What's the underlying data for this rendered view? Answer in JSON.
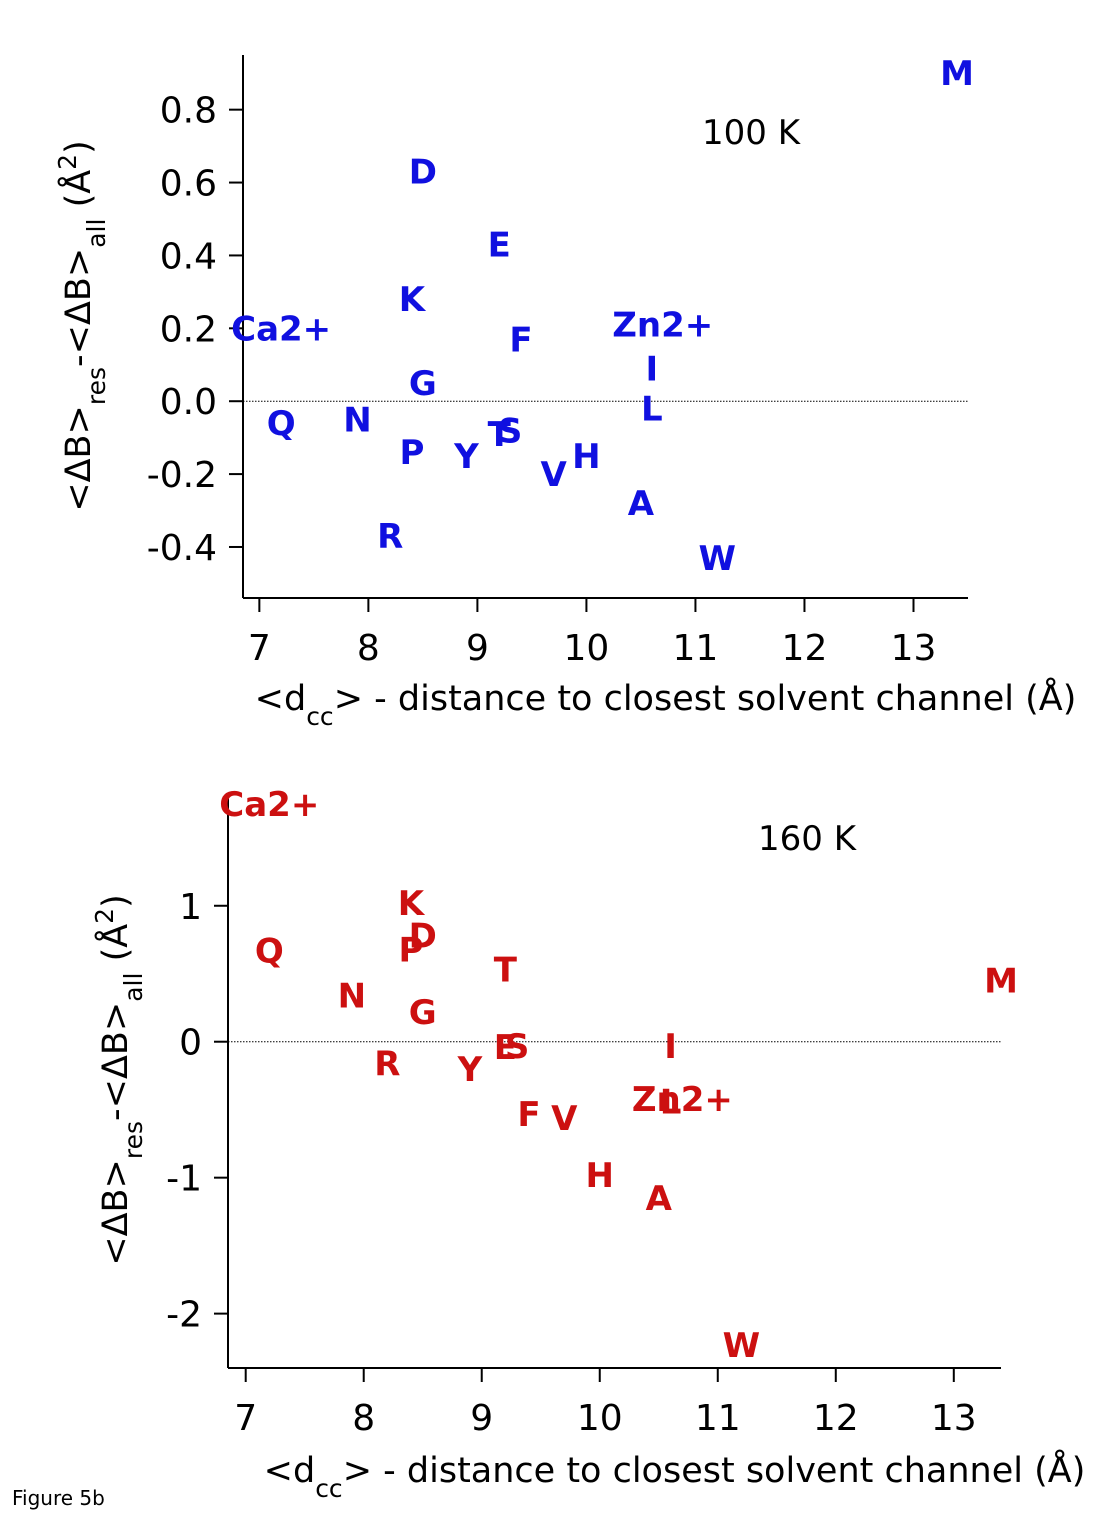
{
  "figure_label": "Figure 5b",
  "chart_data": [
    {
      "type": "scatter",
      "annotation": "100 K",
      "color": "#1010e0",
      "xlim": [
        6.85,
        13.5
      ],
      "ylim": [
        -0.54,
        0.95
      ],
      "xticks": [
        "7",
        "8",
        "9",
        "10",
        "11",
        "12",
        "13"
      ],
      "yticks": [
        "0.8",
        "0.6",
        "0.4",
        "0.2",
        "0.0",
        "-0.2",
        "-0.4"
      ],
      "ytick_values": [
        0.8,
        0.6,
        0.4,
        0.2,
        0.0,
        -0.2,
        -0.4
      ],
      "zero_line": true,
      "points": [
        {
          "label": "M",
          "x": 13.4,
          "y": 0.9
        },
        {
          "label": "D",
          "x": 8.5,
          "y": 0.63
        },
        {
          "label": "E",
          "x": 9.2,
          "y": 0.43
        },
        {
          "label": "K",
          "x": 8.4,
          "y": 0.28
        },
        {
          "label": "Ca2+",
          "x": 7.2,
          "y": 0.2
        },
        {
          "label": "Zn2+",
          "x": 10.7,
          "y": 0.21
        },
        {
          "label": "F",
          "x": 9.4,
          "y": 0.17
        },
        {
          "label": "I",
          "x": 10.6,
          "y": 0.09
        },
        {
          "label": "G",
          "x": 8.5,
          "y": 0.05
        },
        {
          "label": "L",
          "x": 10.6,
          "y": -0.02
        },
        {
          "label": "Q",
          "x": 7.2,
          "y": -0.06
        },
        {
          "label": "N",
          "x": 7.9,
          "y": -0.05
        },
        {
          "label": "T",
          "x": 9.2,
          "y": -0.09
        },
        {
          "label": "S",
          "x": 9.3,
          "y": -0.08
        },
        {
          "label": "P",
          "x": 8.4,
          "y": -0.14
        },
        {
          "label": "Y",
          "x": 8.9,
          "y": -0.15
        },
        {
          "label": "H",
          "x": 10.0,
          "y": -0.15
        },
        {
          "label": "V",
          "x": 9.7,
          "y": -0.2
        },
        {
          "label": "A",
          "x": 10.5,
          "y": -0.28
        },
        {
          "label": "R",
          "x": 8.2,
          "y": -0.37
        },
        {
          "label": "W",
          "x": 11.2,
          "y": -0.43
        }
      ]
    },
    {
      "type": "scatter",
      "annotation": "160 K",
      "color": "#cc1010",
      "xlim": [
        6.85,
        13.4
      ],
      "ylim": [
        -2.4,
        1.8
      ],
      "xticks": [
        "7",
        "8",
        "9",
        "10",
        "11",
        "12",
        "13"
      ],
      "yticks": [
        "1",
        "0",
        "-1",
        "-2"
      ],
      "ytick_values": [
        1,
        0,
        -1,
        -2
      ],
      "zero_line": true,
      "points": [
        {
          "label": "Ca2+",
          "x": 7.2,
          "y": 1.75
        },
        {
          "label": "K",
          "x": 8.4,
          "y": 1.02
        },
        {
          "label": "D",
          "x": 8.5,
          "y": 0.78
        },
        {
          "label": "P",
          "x": 8.4,
          "y": 0.68
        },
        {
          "label": "Q",
          "x": 7.2,
          "y": 0.67
        },
        {
          "label": "T",
          "x": 9.2,
          "y": 0.53
        },
        {
          "label": "M",
          "x": 13.4,
          "y": 0.45
        },
        {
          "label": "N",
          "x": 7.9,
          "y": 0.34
        },
        {
          "label": "G",
          "x": 8.5,
          "y": 0.22
        },
        {
          "label": "E",
          "x": 9.2,
          "y": -0.04
        },
        {
          "label": "S",
          "x": 9.3,
          "y": -0.03
        },
        {
          "label": "I",
          "x": 10.6,
          "y": -0.03
        },
        {
          "label": "R",
          "x": 8.2,
          "y": -0.16
        },
        {
          "label": "Y",
          "x": 8.9,
          "y": -0.2
        },
        {
          "label": "Zn2+",
          "x": 10.7,
          "y": -0.42
        },
        {
          "label": "L",
          "x": 10.6,
          "y": -0.44
        },
        {
          "label": "F",
          "x": 9.4,
          "y": -0.53
        },
        {
          "label": "V",
          "x": 9.7,
          "y": -0.56
        },
        {
          "label": "H",
          "x": 10.0,
          "y": -0.98
        },
        {
          "label": "A",
          "x": 10.5,
          "y": -1.15
        },
        {
          "label": "W",
          "x": 11.2,
          "y": -2.23
        }
      ]
    }
  ]
}
